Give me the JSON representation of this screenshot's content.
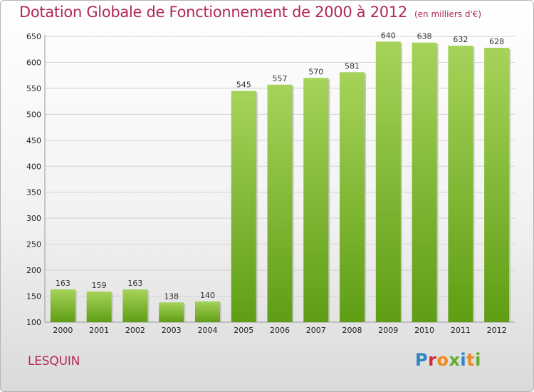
{
  "header": {
    "title": "Dotation Globale de Fonctionnement de 2000 à 2012",
    "unit": "(en milliers d'€)"
  },
  "footer": {
    "place": "LESQUIN",
    "logo": "Proxiti"
  },
  "colors": {
    "title": "#b0285a",
    "bar_top": "#a6d35a",
    "bar_bottom": "#5f9e14"
  },
  "chart_data": {
    "type": "bar",
    "title": "Dotation Globale de Fonctionnement de 2000 à 2012",
    "subtitle": "(en milliers d'€)",
    "xlabel": "",
    "ylabel": "",
    "categories": [
      "2000",
      "2001",
      "2002",
      "2003",
      "2004",
      "2005",
      "2006",
      "2007",
      "2008",
      "2009",
      "2010",
      "2011",
      "2012"
    ],
    "values": [
      163,
      159,
      163,
      138,
      140,
      545,
      557,
      570,
      581,
      640,
      638,
      632,
      628
    ],
    "ylim": [
      100,
      650
    ],
    "yticks": [
      100,
      150,
      200,
      250,
      300,
      350,
      400,
      450,
      500,
      550,
      600,
      650
    ],
    "grid": true,
    "data_labels": true
  }
}
